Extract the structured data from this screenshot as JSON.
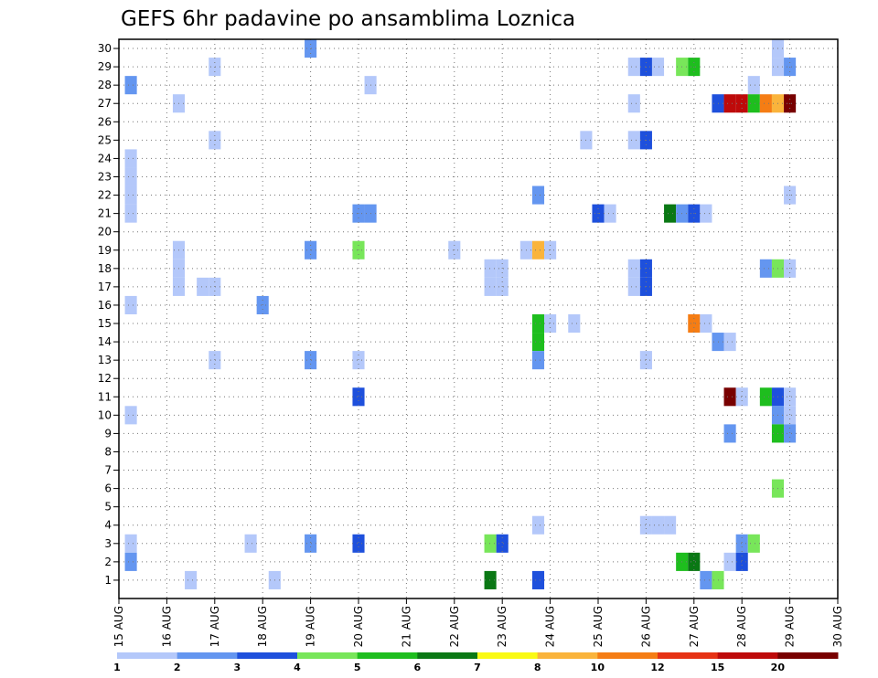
{
  "chart_data": {
    "type": "heatmap",
    "title": "GEFS 6hr padavine po ansamblima Loznica",
    "members": [
      1,
      2,
      3,
      4,
      5,
      6,
      7,
      8,
      9,
      10,
      11,
      12,
      13,
      14,
      15,
      16,
      17,
      18,
      19,
      20,
      21,
      22,
      23,
      24,
      25,
      26,
      27,
      28,
      29,
      30
    ],
    "x_tick_labels": [
      "15 AUG",
      "16 AUG",
      "17 AUG",
      "18 AUG",
      "19 AUG",
      "20 AUG",
      "21 AUG",
      "22 AUG",
      "23 AUG",
      "24 AUG",
      "25 AUG",
      "26 AUG",
      "27 AUG",
      "28 AUG",
      "29 AUG",
      "30 AUG"
    ],
    "time_range_days": [
      0,
      15
    ],
    "step_hours": 6,
    "grid": true,
    "colorbar": {
      "position": "bottom",
      "tick_labels": [
        "1",
        "2",
        "3",
        "4",
        "5",
        "6",
        "7",
        "8",
        "10",
        "12",
        "15",
        "20"
      ],
      "colors": [
        "#b4c8fa",
        "#6496f0",
        "#1e50dc",
        "#78e65a",
        "#1ebe1e",
        "#0a7814",
        "#fafa14",
        "#fab43c",
        "#f57d14",
        "#e63214",
        "#be0a0a",
        "#780000"
      ]
    },
    "cells": [
      [
        0.25,
        28,
        2
      ],
      [
        0.25,
        24,
        1
      ],
      [
        0.25,
        23,
        1
      ],
      [
        0.25,
        22,
        1
      ],
      [
        0.25,
        21,
        1
      ],
      [
        0.25,
        16,
        1
      ],
      [
        0.25,
        10,
        1
      ],
      [
        0.25,
        3,
        1
      ],
      [
        0.25,
        2,
        2
      ],
      [
        1.25,
        27,
        1
      ],
      [
        1.25,
        19,
        1
      ],
      [
        1.25,
        18,
        1
      ],
      [
        1.25,
        17,
        1
      ],
      [
        1.5,
        1,
        1
      ],
      [
        1.75,
        17,
        1
      ],
      [
        2.0,
        29,
        1
      ],
      [
        2.0,
        25,
        1
      ],
      [
        2.0,
        17,
        1
      ],
      [
        2.0,
        13,
        1
      ],
      [
        2.75,
        3,
        1
      ],
      [
        3.0,
        16,
        2
      ],
      [
        3.25,
        1,
        1
      ],
      [
        4.0,
        30,
        2
      ],
      [
        4.0,
        19,
        2
      ],
      [
        4.0,
        13,
        2
      ],
      [
        4.0,
        3,
        2
      ],
      [
        5.0,
        21,
        2
      ],
      [
        5.0,
        19,
        4
      ],
      [
        5.0,
        13,
        1
      ],
      [
        5.0,
        11,
        3
      ],
      [
        5.0,
        3,
        3
      ],
      [
        5.25,
        28,
        1
      ],
      [
        5.25,
        21,
        2
      ],
      [
        7.0,
        19,
        1
      ],
      [
        7.75,
        18,
        1
      ],
      [
        7.75,
        17,
        1
      ],
      [
        7.75,
        3,
        4
      ],
      [
        7.75,
        1,
        6
      ],
      [
        8.0,
        18,
        1
      ],
      [
        8.0,
        17,
        1
      ],
      [
        8.0,
        3,
        3
      ],
      [
        8.5,
        19,
        1
      ],
      [
        8.75,
        22,
        2
      ],
      [
        8.75,
        19,
        8
      ],
      [
        8.75,
        15,
        5
      ],
      [
        8.75,
        14,
        5
      ],
      [
        8.75,
        13,
        2
      ],
      [
        8.75,
        4,
        1
      ],
      [
        8.75,
        1,
        3
      ],
      [
        9.0,
        19,
        1
      ],
      [
        9.0,
        15,
        1
      ],
      [
        9.5,
        15,
        1
      ],
      [
        9.75,
        25,
        1
      ],
      [
        10.0,
        21,
        3
      ],
      [
        10.25,
        21,
        1
      ],
      [
        10.75,
        29,
        1
      ],
      [
        10.75,
        27,
        1
      ],
      [
        10.75,
        25,
        1
      ],
      [
        10.75,
        18,
        1
      ],
      [
        10.75,
        17,
        1
      ],
      [
        11.0,
        29,
        3
      ],
      [
        11.0,
        25,
        3
      ],
      [
        11.0,
        18,
        3
      ],
      [
        11.0,
        17,
        3
      ],
      [
        11.0,
        13,
        1
      ],
      [
        11.0,
        4,
        1
      ],
      [
        11.25,
        29,
        1
      ],
      [
        11.25,
        4,
        1
      ],
      [
        11.5,
        21,
        6
      ],
      [
        11.5,
        4,
        1
      ],
      [
        11.75,
        29,
        4
      ],
      [
        11.75,
        21,
        2
      ],
      [
        11.75,
        2,
        5
      ],
      [
        12.0,
        29,
        5
      ],
      [
        12.0,
        21,
        3
      ],
      [
        12.0,
        15,
        9
      ],
      [
        12.0,
        2,
        6
      ],
      [
        12.25,
        21,
        1
      ],
      [
        12.25,
        15,
        1
      ],
      [
        12.25,
        1,
        2
      ],
      [
        12.5,
        27,
        3
      ],
      [
        12.5,
        14,
        2
      ],
      [
        12.5,
        1,
        4
      ],
      [
        12.75,
        27,
        11
      ],
      [
        12.75,
        14,
        1
      ],
      [
        12.75,
        11,
        12
      ],
      [
        12.75,
        9,
        2
      ],
      [
        12.75,
        2,
        1
      ],
      [
        13.0,
        27,
        11
      ],
      [
        13.0,
        11,
        1
      ],
      [
        13.0,
        3,
        2
      ],
      [
        13.0,
        2,
        3
      ],
      [
        13.25,
        28,
        1
      ],
      [
        13.25,
        27,
        5
      ],
      [
        13.25,
        3,
        4
      ],
      [
        13.5,
        27,
        9
      ],
      [
        13.5,
        18,
        2
      ],
      [
        13.5,
        11,
        5
      ],
      [
        13.75,
        30,
        1
      ],
      [
        13.75,
        29,
        1
      ],
      [
        13.75,
        27,
        8
      ],
      [
        13.75,
        18,
        4
      ],
      [
        13.75,
        11,
        3
      ],
      [
        13.75,
        10,
        2
      ],
      [
        13.75,
        9,
        5
      ],
      [
        13.75,
        6,
        4
      ],
      [
        14.0,
        29,
        2
      ],
      [
        14.0,
        27,
        12
      ],
      [
        14.0,
        22,
        1
      ],
      [
        14.0,
        18,
        1
      ],
      [
        14.0,
        11,
        1
      ],
      [
        14.0,
        10,
        1
      ],
      [
        14.0,
        9,
        2
      ]
    ]
  }
}
